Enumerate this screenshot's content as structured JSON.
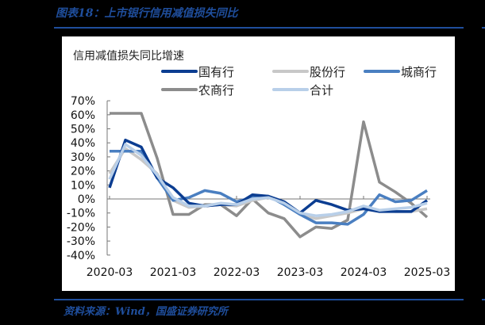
{
  "figure": {
    "title": "图表18：上市银行信用减值损失同比",
    "source": "资料来源：Wind，国盛证券研究所",
    "accent_color": "#1f4e9c"
  },
  "chart_data": {
    "type": "line",
    "title": "信用减值损失同比增速",
    "xlabel": "",
    "ylabel": "",
    "ylim": [
      -0.4,
      0.7
    ],
    "yticks": [
      "70%",
      "60%",
      "50%",
      "40%",
      "30%",
      "20%",
      "10%",
      "0%",
      "-10%",
      "-20%",
      "-30%",
      "-40%"
    ],
    "xtick_labels": [
      "2020-03",
      "2021-03",
      "2022-03",
      "2023-03",
      "2024-03",
      "2025-03"
    ],
    "legend_position": "top",
    "grid": false,
    "x": [
      "2020-03",
      "2020-06",
      "2020-09",
      "2020-12",
      "2021-03",
      "2021-06",
      "2021-09",
      "2021-12",
      "2022-03",
      "2022-06",
      "2022-09",
      "2022-12",
      "2023-03",
      "2023-06",
      "2023-09",
      "2023-12",
      "2024-03",
      "2024-06",
      "2024-09",
      "2024-12",
      "2025-03"
    ],
    "series": [
      {
        "name": "国有行",
        "color": "#0b3d91",
        "values": [
          8,
          42,
          37,
          15,
          8,
          -3,
          -5,
          -4,
          -4,
          3,
          2,
          -2,
          -10,
          -1,
          -4,
          -8,
          -7,
          -9,
          -9,
          -9,
          -1
        ]
      },
      {
        "name": "股份行",
        "color": "#c8c8c8",
        "values": [
          18,
          36,
          28,
          18,
          -1,
          -6,
          -5,
          -4,
          -5,
          -1,
          1,
          -2,
          -11,
          -14,
          -12,
          -10,
          -7,
          -8,
          -9,
          -9,
          -7
        ]
      },
      {
        "name": "城商行",
        "color": "#4a7fc1",
        "values": [
          34,
          34,
          34,
          15,
          -1,
          1,
          6,
          4,
          -2,
          1,
          2,
          -4,
          -11,
          -17,
          -17,
          -18,
          -11,
          3,
          -2,
          -1,
          6
        ]
      },
      {
        "name": "农商行",
        "color": "#8c8c8c",
        "values": [
          61,
          61,
          61,
          29,
          -11,
          -11,
          -4,
          -4,
          -12,
          0,
          -10,
          -14,
          -27,
          -20,
          -21,
          -15,
          55,
          12,
          5,
          -3,
          -13
        ]
      },
      {
        "name": "合计",
        "color": "#b8cfe9",
        "values": [
          14,
          39,
          31,
          17,
          1,
          -5,
          -5,
          -3,
          -4,
          0,
          1,
          -3,
          -10,
          -12,
          -11,
          -9,
          -5,
          -8,
          -7,
          -6,
          -3
        ]
      }
    ]
  }
}
